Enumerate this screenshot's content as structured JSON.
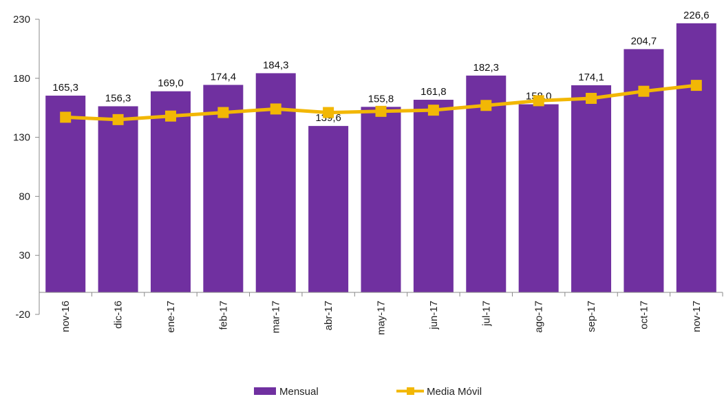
{
  "chart_data": {
    "type": "bar",
    "categories": [
      "nov-16",
      "dic-16",
      "ene-17",
      "feb-17",
      "mar-17",
      "abr-17",
      "may-17",
      "jun-17",
      "jul-17",
      "ago-17",
      "sep-17",
      "oct-17",
      "nov-17"
    ],
    "series": [
      {
        "name": "Mensual",
        "type": "bar",
        "values": [
          165.3,
          156.3,
          169.0,
          174.4,
          184.3,
          139.6,
          155.8,
          161.8,
          182.3,
          158.0,
          174.1,
          204.7,
          226.6
        ],
        "labels": [
          "165,3",
          "156,3",
          "169,0",
          "174,4",
          "184,3",
          "139,6",
          "155,8",
          "161,8",
          "182,3",
          "158,0",
          "174,1",
          "204,7",
          "226,6"
        ],
        "color": "#7030A0"
      },
      {
        "name": "Media Móvil",
        "type": "line",
        "values": [
          147,
          145,
          148,
          151,
          154,
          151,
          152,
          153,
          157,
          161,
          163,
          169,
          174
        ],
        "color": "#F2B705"
      }
    ],
    "ylim": [
      -20,
      230
    ],
    "yticks": [
      "230",
      "180",
      "130",
      "80",
      "30",
      "-20"
    ],
    "ytick_values": [
      230,
      180,
      130,
      80,
      30,
      -20
    ],
    "legend_position": "bottom-center",
    "grid": false
  }
}
